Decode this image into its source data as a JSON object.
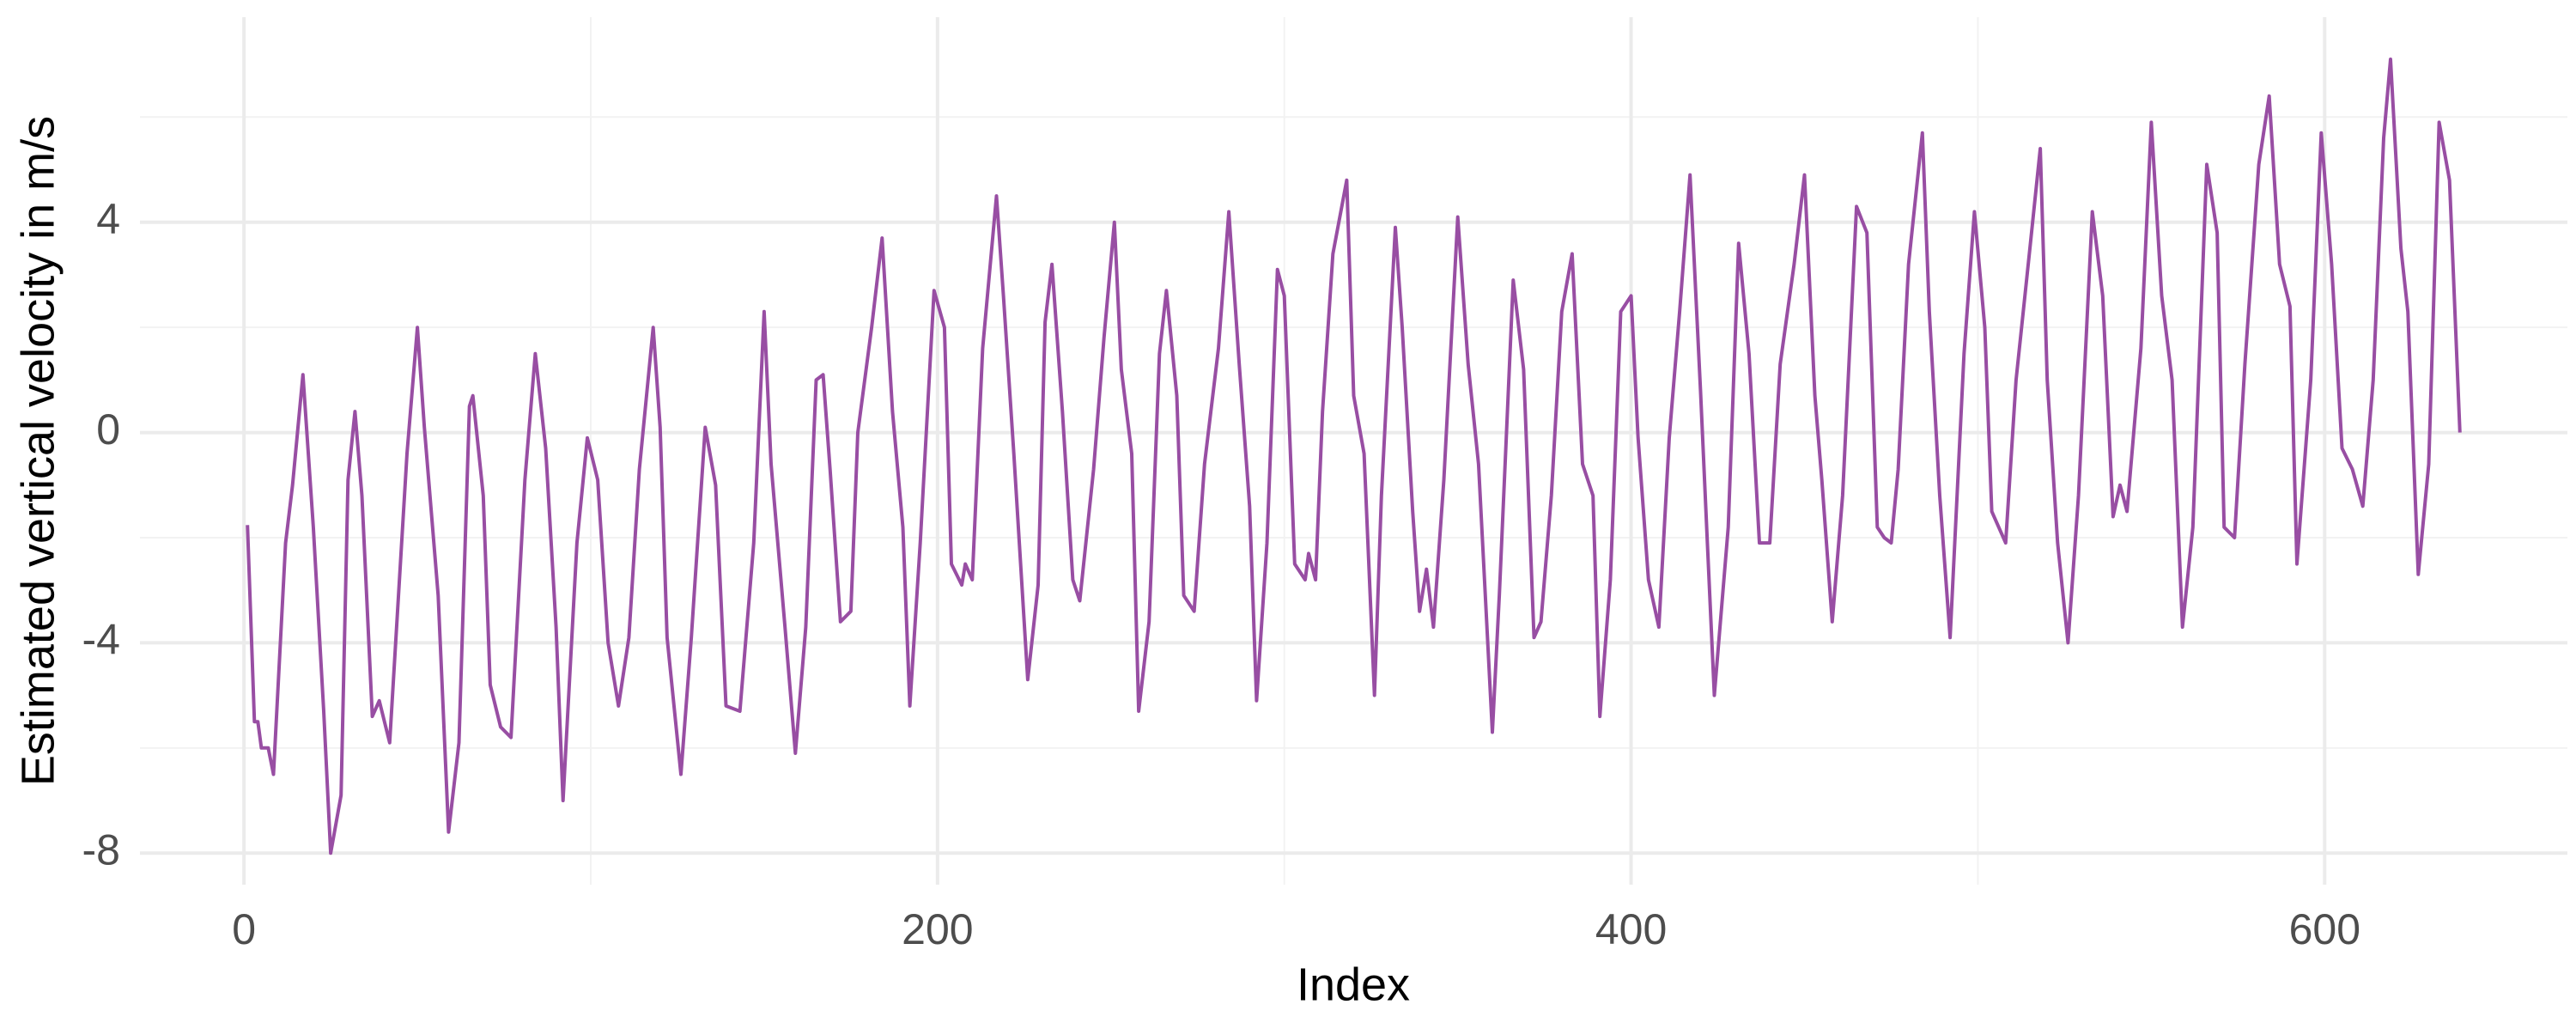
{
  "chart_data": {
    "type": "line",
    "xlabel": "Index",
    "ylabel": "Estimated vertical velocity in m/s",
    "color": "#984ea3",
    "grid": true,
    "xlim": [
      -30,
      670
    ],
    "ylim": [
      -8.6,
      7.9
    ],
    "xticks": [
      0,
      200,
      400,
      600
    ],
    "yticks": [
      -8,
      -4,
      0,
      4
    ],
    "xminor": [
      100,
      300,
      500
    ],
    "yminor": [
      -6,
      -2,
      2,
      6
    ],
    "x": [
      1,
      3,
      4,
      5,
      7,
      8.5,
      12,
      14,
      17,
      20,
      23,
      25,
      28,
      30,
      32,
      34,
      37,
      39,
      42,
      47,
      50,
      52,
      56,
      59,
      62,
      65,
      66,
      69,
      71,
      74,
      77,
      81,
      84,
      87,
      90,
      92,
      96,
      99,
      102,
      105,
      108,
      111,
      114,
      118,
      120,
      122,
      126,
      129,
      133,
      136,
      139,
      143,
      147,
      150,
      152,
      156,
      159,
      162,
      165,
      167,
      169,
      172,
      175,
      177,
      181,
      184,
      187,
      190,
      192,
      195,
      199,
      202,
      204,
      207,
      208,
      210,
      213,
      217,
      219,
      222,
      226,
      229,
      231,
      233,
      236,
      239,
      241,
      245,
      248,
      251,
      253,
      256,
      258,
      261,
      264,
      266,
      269,
      271,
      274,
      277,
      281,
      284,
      287,
      290,
      292,
      295,
      298,
      300,
      303,
      306,
      307,
      309,
      311,
      314,
      318,
      320,
      323,
      326,
      328,
      332,
      334,
      337,
      339,
      341,
      343,
      346,
      350,
      353,
      356,
      360,
      362,
      366,
      369,
      372,
      374,
      377,
      380,
      383,
      386,
      389,
      391,
      394,
      397,
      400,
      402,
      405,
      408,
      411,
      414,
      417,
      420,
      422,
      424,
      428,
      431,
      434,
      437,
      440,
      443,
      447,
      450,
      453,
      455,
      458,
      461,
      465,
      468,
      471,
      473,
      475,
      477,
      480,
      484,
      486,
      489,
      492,
      496,
      499,
      502,
      504,
      508,
      511,
      515,
      518,
      520,
      523,
      526,
      529,
      533,
      536,
      539,
      541,
      543,
      547,
      550,
      553,
      556,
      559,
      562,
      566,
      569,
      571,
      574,
      577,
      581,
      584,
      587,
      590,
      592,
      596,
      599,
      602,
      605,
      608,
      611,
      614,
      617,
      619,
      622,
      624,
      627,
      630,
      633,
      636,
      639
    ],
    "values": [
      -1.76,
      -5.5,
      -5.5,
      -6.0,
      -6.0,
      -6.5,
      -2.1,
      -1.0,
      1.1,
      -1.8,
      -5.3,
      -8.0,
      -6.9,
      -0.9,
      0.4,
      -1.2,
      -5.4,
      -5.1,
      -5.9,
      -0.4,
      2.0,
      0.1,
      -3.1,
      -7.6,
      -5.9,
      0.5,
      0.7,
      -1.2,
      -4.8,
      -5.6,
      -5.8,
      -0.9,
      1.5,
      -0.3,
      -3.7,
      -7.0,
      -2.1,
      -0.1,
      -0.9,
      -4.0,
      -5.2,
      -3.9,
      -0.7,
      2.0,
      0.1,
      -3.9,
      -6.5,
      -3.9,
      0.1,
      -1.0,
      -5.2,
      -5.3,
      -2.1,
      2.3,
      -0.6,
      -3.7,
      -6.1,
      -3.7,
      1.0,
      1.1,
      -0.7,
      -3.6,
      -3.4,
      0.0,
      2.0,
      3.7,
      0.4,
      -1.8,
      -5.2,
      -2.1,
      2.7,
      2.0,
      -2.5,
      -2.9,
      -2.5,
      -2.8,
      1.6,
      4.5,
      2.6,
      -0.4,
      -4.7,
      -2.9,
      2.1,
      3.2,
      0.4,
      -2.8,
      -3.2,
      -0.7,
      1.8,
      4.0,
      1.2,
      -0.4,
      -5.3,
      -3.6,
      1.5,
      2.7,
      0.7,
      -3.1,
      -3.4,
      -0.6,
      1.6,
      4.2,
      1.3,
      -1.4,
      -5.1,
      -2.1,
      3.1,
      2.6,
      -2.5,
      -2.8,
      -2.3,
      -2.8,
      0.4,
      3.4,
      4.8,
      0.7,
      -0.4,
      -5.0,
      -1.2,
      3.9,
      2.0,
      -1.5,
      -3.4,
      -2.6,
      -3.7,
      -0.9,
      4.1,
      1.3,
      -0.6,
      -5.7,
      -3.1,
      2.9,
      1.2,
      -3.9,
      -3.6,
      -1.2,
      2.3,
      3.4,
      -0.6,
      -1.2,
      -5.4,
      -2.8,
      2.3,
      2.6,
      -0.1,
      -2.8,
      -3.7,
      -0.1,
      2.3,
      4.9,
      0.8,
      -2.1,
      -5.0,
      -1.8,
      3.6,
      1.5,
      -2.1,
      -2.1,
      1.3,
      3.2,
      4.9,
      0.7,
      -0.9,
      -3.6,
      -1.2,
      4.3,
      3.8,
      -1.8,
      -2.0,
      -2.1,
      -0.7,
      3.2,
      5.7,
      2.3,
      -1.2,
      -3.9,
      1.5,
      4.2,
      2.0,
      -1.5,
      -2.1,
      1.0,
      3.5,
      5.4,
      1.0,
      -2.1,
      -4.0,
      -1.2,
      4.2,
      2.6,
      -1.6,
      -1.0,
      -1.5,
      1.6,
      5.9,
      2.6,
      1.0,
      -3.7,
      -1.8,
      5.1,
      3.8,
      -1.8,
      -2.0,
      1.3,
      5.1,
      6.4,
      3.2,
      2.4,
      -2.5,
      1.0,
      5.7,
      3.2,
      -0.3,
      -0.7,
      -1.4,
      1.0,
      5.6,
      7.1,
      3.5,
      2.3,
      -2.7,
      -0.6,
      5.9,
      4.8,
      0.0
    ]
  }
}
